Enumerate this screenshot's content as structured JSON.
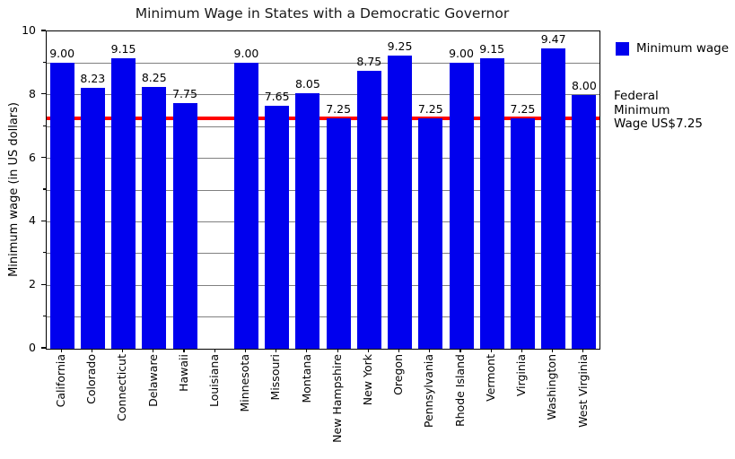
{
  "chart_data": {
    "type": "bar",
    "title": "Minimum Wage in States with a Democratic Governor",
    "ylabel": "Minimum wage (in US dollars)",
    "xlabel": "",
    "ylim": [
      0,
      10
    ],
    "yticks": [
      0,
      2,
      4,
      6,
      8,
      10
    ],
    "grid": {
      "axis": "y",
      "interval": 1,
      "color": "#808080"
    },
    "categories": [
      "California",
      "Colorado",
      "Connecticut",
      "Delaware",
      "Hawaii",
      "Louisiana",
      "Minnesota",
      "Missouri",
      "Montana",
      "New Hampshire",
      "New York",
      "Oregon",
      "Pennsylvania",
      "Rhode Island",
      "Vermont",
      "Virginia",
      "Washington",
      "West Virginia"
    ],
    "values": [
      9.0,
      8.23,
      9.15,
      8.25,
      7.75,
      null,
      9.0,
      7.65,
      8.05,
      7.25,
      8.75,
      9.25,
      7.25,
      9.0,
      9.15,
      7.25,
      9.47,
      8.0
    ],
    "bar_value_labels": [
      "9.00",
      "8.23",
      "9.15",
      "8.25",
      "7.75",
      null,
      "9.00",
      "7.65",
      "8.05",
      "7.25",
      "8.75",
      "9.25",
      "7.25",
      "9.00",
      "9.15",
      "7.25",
      "9.47",
      "8.00"
    ],
    "bar_color": "#0000ee",
    "legend": {
      "position": "upper_right_outside",
      "entries": [
        {
          "label": "Minimum wage",
          "color": "#0000ee"
        }
      ]
    },
    "reference_line": {
      "value": 7.25,
      "color": "#ff0000",
      "annotation_lines": [
        "Federal",
        "Minimum",
        "Wage US$7.25"
      ]
    }
  }
}
